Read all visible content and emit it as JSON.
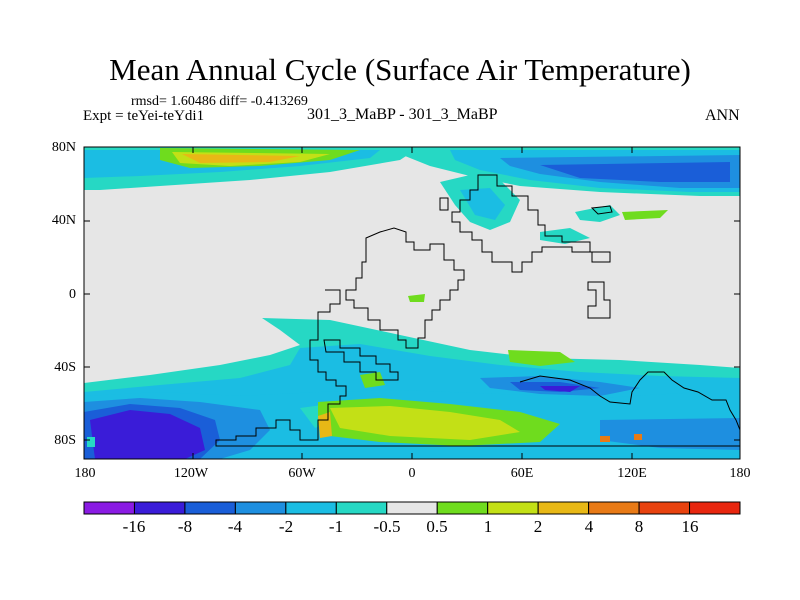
{
  "title": "Mean Annual Cycle (Surface Air Temperature)",
  "stats_text": "rmsd= 1.60486 diff= -0.413269",
  "expt_text": "Expt = teYei-teYdi1",
  "center_label": "301_3_MaBP - 301_3_MaBP",
  "season": "ANN",
  "lat_ticks": [
    "80N",
    "40N",
    "0",
    "40S",
    "80S"
  ],
  "lon_ticks": [
    "180",
    "120W",
    "60W",
    "0",
    "60E",
    "120E",
    "180"
  ],
  "colorbar": {
    "labels": [
      "-16",
      "-8",
      "-4",
      "-2",
      "-1",
      "-0.5",
      "0.5",
      "1",
      "2",
      "4",
      "8",
      "16"
    ],
    "colors": [
      "#8a1be3",
      "#3a1cd8",
      "#1a5ed8",
      "#1e8fe0",
      "#1bbde3",
      "#26d8c4",
      "#e6e6e6",
      "#6fdc1e",
      "#c3e016",
      "#e8b816",
      "#e87a16",
      "#e8420e",
      "#e8260e"
    ]
  },
  "colors": {
    "background_fill": "#e6e6e6",
    "coastline": "#000000"
  }
}
